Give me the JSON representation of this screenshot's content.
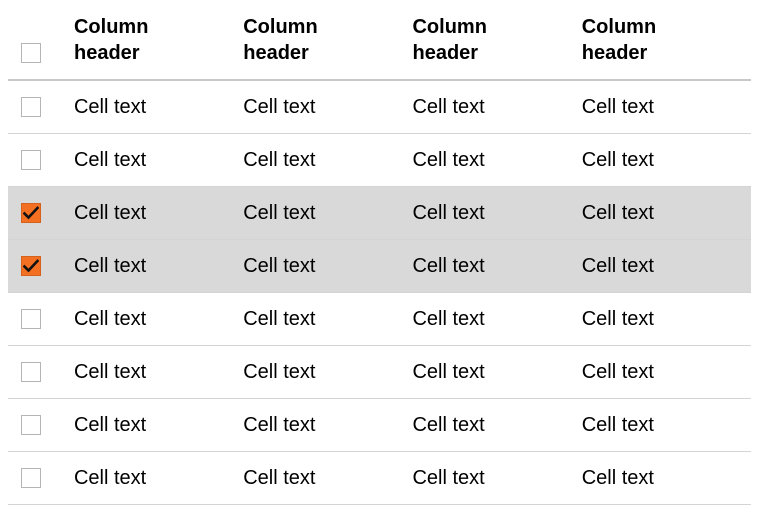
{
  "header": {
    "columns": [
      {
        "line1": "Column",
        "line2": "header"
      },
      {
        "line1": "Column",
        "line2": "header"
      },
      {
        "line1": "Column",
        "line2": "header"
      },
      {
        "line1": "Column",
        "line2": "header"
      }
    ],
    "select_all_checked": false
  },
  "rows": [
    {
      "checked": false,
      "cells": [
        "Cell text",
        "Cell text",
        "Cell text",
        "Cell text"
      ]
    },
    {
      "checked": false,
      "cells": [
        "Cell text",
        "Cell text",
        "Cell text",
        "Cell text"
      ]
    },
    {
      "checked": true,
      "cells": [
        "Cell text",
        "Cell text",
        "Cell text",
        "Cell text"
      ]
    },
    {
      "checked": true,
      "cells": [
        "Cell text",
        "Cell text",
        "Cell text",
        "Cell text"
      ]
    },
    {
      "checked": false,
      "cells": [
        "Cell text",
        "Cell text",
        "Cell text",
        "Cell text"
      ]
    },
    {
      "checked": false,
      "cells": [
        "Cell text",
        "Cell text",
        "Cell text",
        "Cell text"
      ]
    },
    {
      "checked": false,
      "cells": [
        "Cell text",
        "Cell text",
        "Cell text",
        "Cell text"
      ]
    },
    {
      "checked": false,
      "cells": [
        "Cell text",
        "Cell text",
        "Cell text",
        "Cell text"
      ]
    }
  ],
  "colors": {
    "accent": "#f36f21",
    "selected_row": "#d9d9d9",
    "row_border": "#d4d4d4"
  },
  "icons": {
    "checkmark": "checkmark-icon"
  }
}
